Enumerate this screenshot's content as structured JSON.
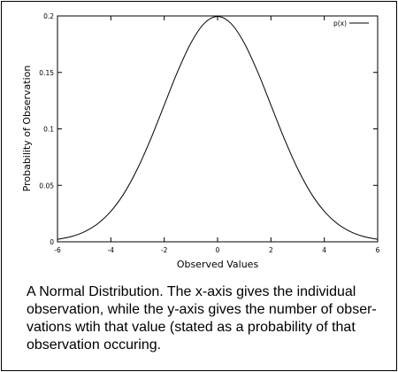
{
  "chart_data": {
    "type": "line",
    "title": "",
    "xlabel": "Observed Values",
    "ylabel": "Probability of Observation",
    "xlim": [
      -6,
      6
    ],
    "ylim": [
      0,
      0.2
    ],
    "x_ticks": [
      -6,
      -4,
      -2,
      0,
      2,
      4,
      6
    ],
    "y_ticks": [
      0,
      0.05,
      0.1,
      0.15,
      0.2
    ],
    "x_tick_labels": [
      "-6",
      "-4",
      "-2",
      "0",
      "2",
      "4",
      "6"
    ],
    "y_tick_labels": [
      "0",
      "0.05",
      "0.1",
      "0.15",
      "0.2"
    ],
    "grid": false,
    "legend_position": "top-right",
    "series": [
      {
        "name": "p(x)",
        "color": "#000000",
        "x": [
          -6,
          -5.5,
          -5,
          -4.5,
          -4,
          -3.5,
          -3,
          -2.5,
          -2,
          -1.5,
          -1,
          -0.5,
          0,
          0.5,
          1,
          1.5,
          2,
          2.5,
          3,
          3.5,
          4,
          4.5,
          5,
          5.5,
          6
        ],
        "y": [
          0.0022,
          0.0045,
          0.0088,
          0.0159,
          0.027,
          0.0431,
          0.0648,
          0.0913,
          0.121,
          0.1506,
          0.176,
          0.1934,
          0.1995,
          0.1934,
          0.176,
          0.1506,
          0.121,
          0.0913,
          0.0648,
          0.0431,
          0.027,
          0.0159,
          0.0088,
          0.0045,
          0.0022
        ]
      }
    ]
  },
  "caption": {
    "lines": [
      "A Normal Distribution. The x-axis gives the individual",
      "observation, while the y-axis gives the number of obser-",
      "vations wtih that value (stated as a probability of that",
      "observation occuring."
    ]
  }
}
